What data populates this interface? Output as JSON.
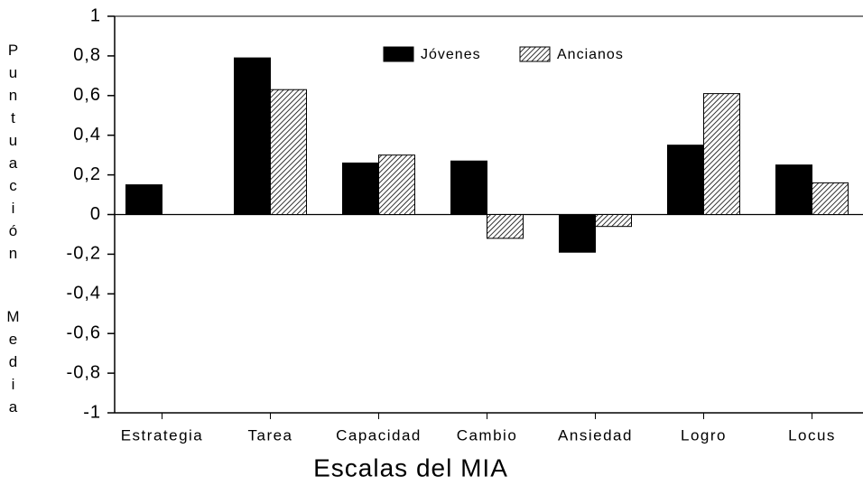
{
  "chart_data": {
    "type": "bar",
    "xlabel": "Escalas del MIA",
    "ylabel": "Puntuación Media",
    "categories": [
      "Estrategia",
      "Tarea",
      "Capacidad",
      "Cambio",
      "Ansiedad",
      "Logro",
      "Locus"
    ],
    "series": [
      {
        "name": "Jóvenes",
        "color": "#000000",
        "hatch": false,
        "values": [
          0.15,
          0.79,
          0.26,
          0.27,
          -0.19,
          0.35,
          0.25
        ]
      },
      {
        "name": "Ancianos",
        "color": "#000000",
        "hatch": true,
        "values": [
          0,
          0.63,
          0.3,
          -0.12,
          -0.06,
          0.61,
          0.16
        ]
      }
    ],
    "ylim": [
      -1,
      1
    ],
    "yticks": [
      1,
      {
        "value": 0.8,
        "label": "0,8"
      },
      {
        "value": 0.6,
        "label": "0,6"
      },
      {
        "value": 0.4,
        "label": "0,4"
      },
      {
        "value": 0.2,
        "label": "0,2"
      },
      0,
      {
        "value": -0.2,
        "label": "-0,2"
      },
      {
        "value": -0.4,
        "label": "-0,4"
      },
      {
        "value": -0.6,
        "label": "-0,6"
      },
      {
        "value": -0.8,
        "label": "-0,8"
      },
      -1
    ],
    "legend": "top"
  }
}
